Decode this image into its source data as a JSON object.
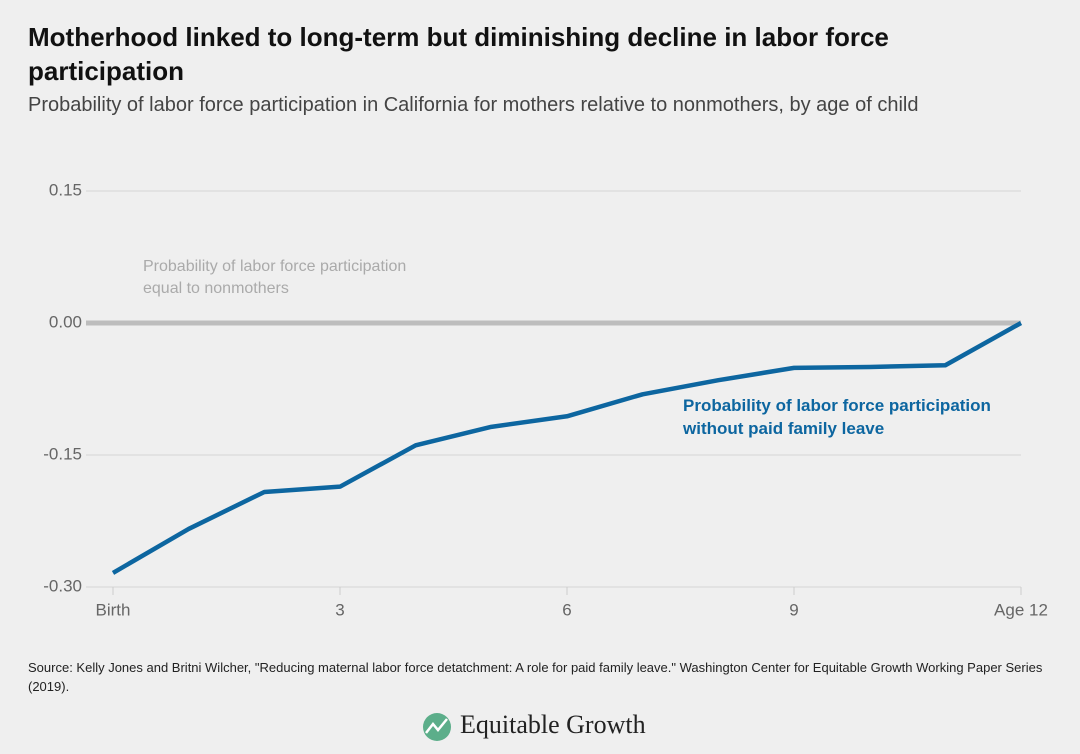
{
  "chart_data": {
    "type": "line",
    "title": "Motherhood linked to long-term but diminishing decline in labor force participation",
    "subtitle": "Probability of labor force participation in California for mothers relative to nonmothers, by age of child",
    "x": [
      0,
      1,
      2,
      3,
      4,
      5,
      6,
      7,
      8,
      9,
      10,
      11,
      12
    ],
    "series": [
      {
        "name": "Probability of labor force participation without paid family leave",
        "color": "#0d66a0",
        "values": [
          -0.284,
          -0.234,
          -0.192,
          -0.186,
          -0.139,
          -0.118,
          -0.106,
          -0.081,
          -0.065,
          -0.051,
          -0.05,
          -0.048,
          0
        ]
      }
    ],
    "reference_line": {
      "value": 0,
      "color": "#bdbdbd",
      "label": "Probability of labor force participation equal to nonmothers"
    },
    "xlim": [
      0,
      12
    ],
    "xticks": [
      {
        "value": 0,
        "label": "Birth"
      },
      3,
      6,
      9,
      {
        "value": 12,
        "label": "Age 12"
      }
    ],
    "ylim": [
      -0.3,
      0.15
    ],
    "yticks": [
      0.15,
      {
        "value": 0,
        "label": "0.00"
      },
      -0.15,
      {
        "value": -0.3,
        "label": "-0.30"
      }
    ],
    "grid": true,
    "source": "Source: Kelly Jones and Britni Wilcher, \"Reducing maternal labor force detatchment: A role for paid family leave.\" Washington Center for Equitable Growth Working Paper Series (2019).",
    "logo": "Equitable Growth"
  }
}
